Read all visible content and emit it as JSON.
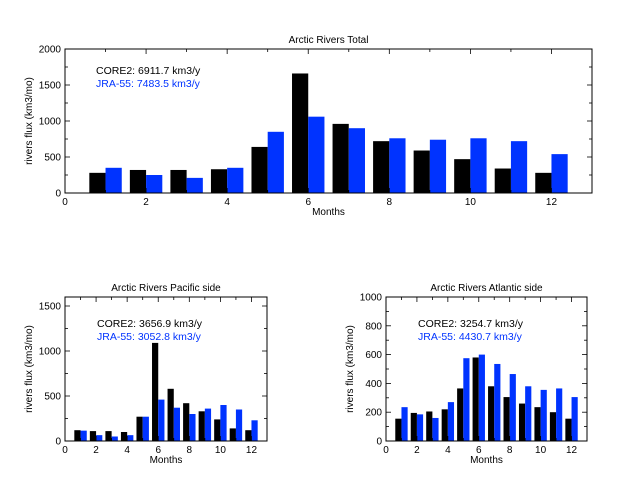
{
  "chart_data": [
    {
      "type": "bar",
      "title": "Arctic Rivers Total",
      "xlabel": "Months",
      "ylabel": "rivers flux (km3/mo)",
      "xlim": [
        0,
        13
      ],
      "ylim": [
        0,
        2000
      ],
      "xticks": [
        0,
        2,
        4,
        6,
        8,
        10,
        12
      ],
      "yticks": [
        0,
        500,
        1000,
        1500,
        2000
      ],
      "categories": [
        1,
        2,
        3,
        4,
        5,
        6,
        7,
        8,
        9,
        10,
        11,
        12
      ],
      "series": [
        {
          "name": "CORE2",
          "color": "#000000",
          "values": [
            280,
            320,
            320,
            330,
            640,
            1660,
            960,
            720,
            590,
            470,
            340,
            280
          ]
        },
        {
          "name": "JRA-55",
          "color": "#0033ff",
          "values": [
            350,
            250,
            210,
            350,
            850,
            1060,
            900,
            760,
            740,
            760,
            720,
            540
          ]
        }
      ],
      "annotations": [
        {
          "text": "CORE2: 6911.7 km3/y",
          "color": "#000000"
        },
        {
          "text": "JRA-55: 7483.5 km3/y",
          "color": "#0033ff"
        }
      ]
    },
    {
      "type": "bar",
      "title": "Arctic Rivers Pacific side",
      "xlabel": "Months",
      "ylabel": "rivers flux (km3/mo)",
      "xlim": [
        0,
        13
      ],
      "ylim": [
        0,
        1600
      ],
      "xticks": [
        0,
        2,
        4,
        6,
        8,
        10,
        12
      ],
      "yticks": [
        0,
        500,
        1000,
        1500
      ],
      "categories": [
        1,
        2,
        3,
        4,
        5,
        6,
        7,
        8,
        9,
        10,
        11,
        12
      ],
      "series": [
        {
          "name": "CORE2",
          "color": "#000000",
          "values": [
            120,
            110,
            110,
            100,
            270,
            1090,
            580,
            420,
            330,
            240,
            140,
            120
          ]
        },
        {
          "name": "JRA-55",
          "color": "#0033ff",
          "values": [
            115,
            65,
            50,
            65,
            270,
            460,
            370,
            300,
            360,
            400,
            350,
            230
          ]
        }
      ],
      "annotations": [
        {
          "text": "CORE2: 3656.9 km3/y",
          "color": "#000000"
        },
        {
          "text": "JRA-55: 3052.8 km3/y",
          "color": "#0033ff"
        }
      ]
    },
    {
      "type": "bar",
      "title": "Arctic Rivers Atlantic side",
      "xlabel": "Months",
      "ylabel": "rivers flux (km3/mo)",
      "xlim": [
        0,
        13
      ],
      "ylim": [
        0,
        1000
      ],
      "xticks": [
        0,
        2,
        4,
        6,
        8,
        10,
        12
      ],
      "yticks": [
        0,
        200,
        400,
        600,
        800,
        1000
      ],
      "categories": [
        1,
        2,
        3,
        4,
        5,
        6,
        7,
        8,
        9,
        10,
        11,
        12
      ],
      "series": [
        {
          "name": "CORE2",
          "color": "#000000",
          "values": [
            155,
            195,
            205,
            220,
            365,
            580,
            380,
            305,
            260,
            235,
            200,
            155
          ]
        },
        {
          "name": "JRA-55",
          "color": "#0033ff",
          "values": [
            235,
            185,
            160,
            270,
            575,
            600,
            535,
            465,
            380,
            355,
            365,
            305
          ]
        }
      ],
      "annotations": [
        {
          "text": "CORE2: 3254.7 km3/y",
          "color": "#000000"
        },
        {
          "text": "JRA-55: 4430.7 km3/y",
          "color": "#0033ff"
        }
      ]
    }
  ]
}
